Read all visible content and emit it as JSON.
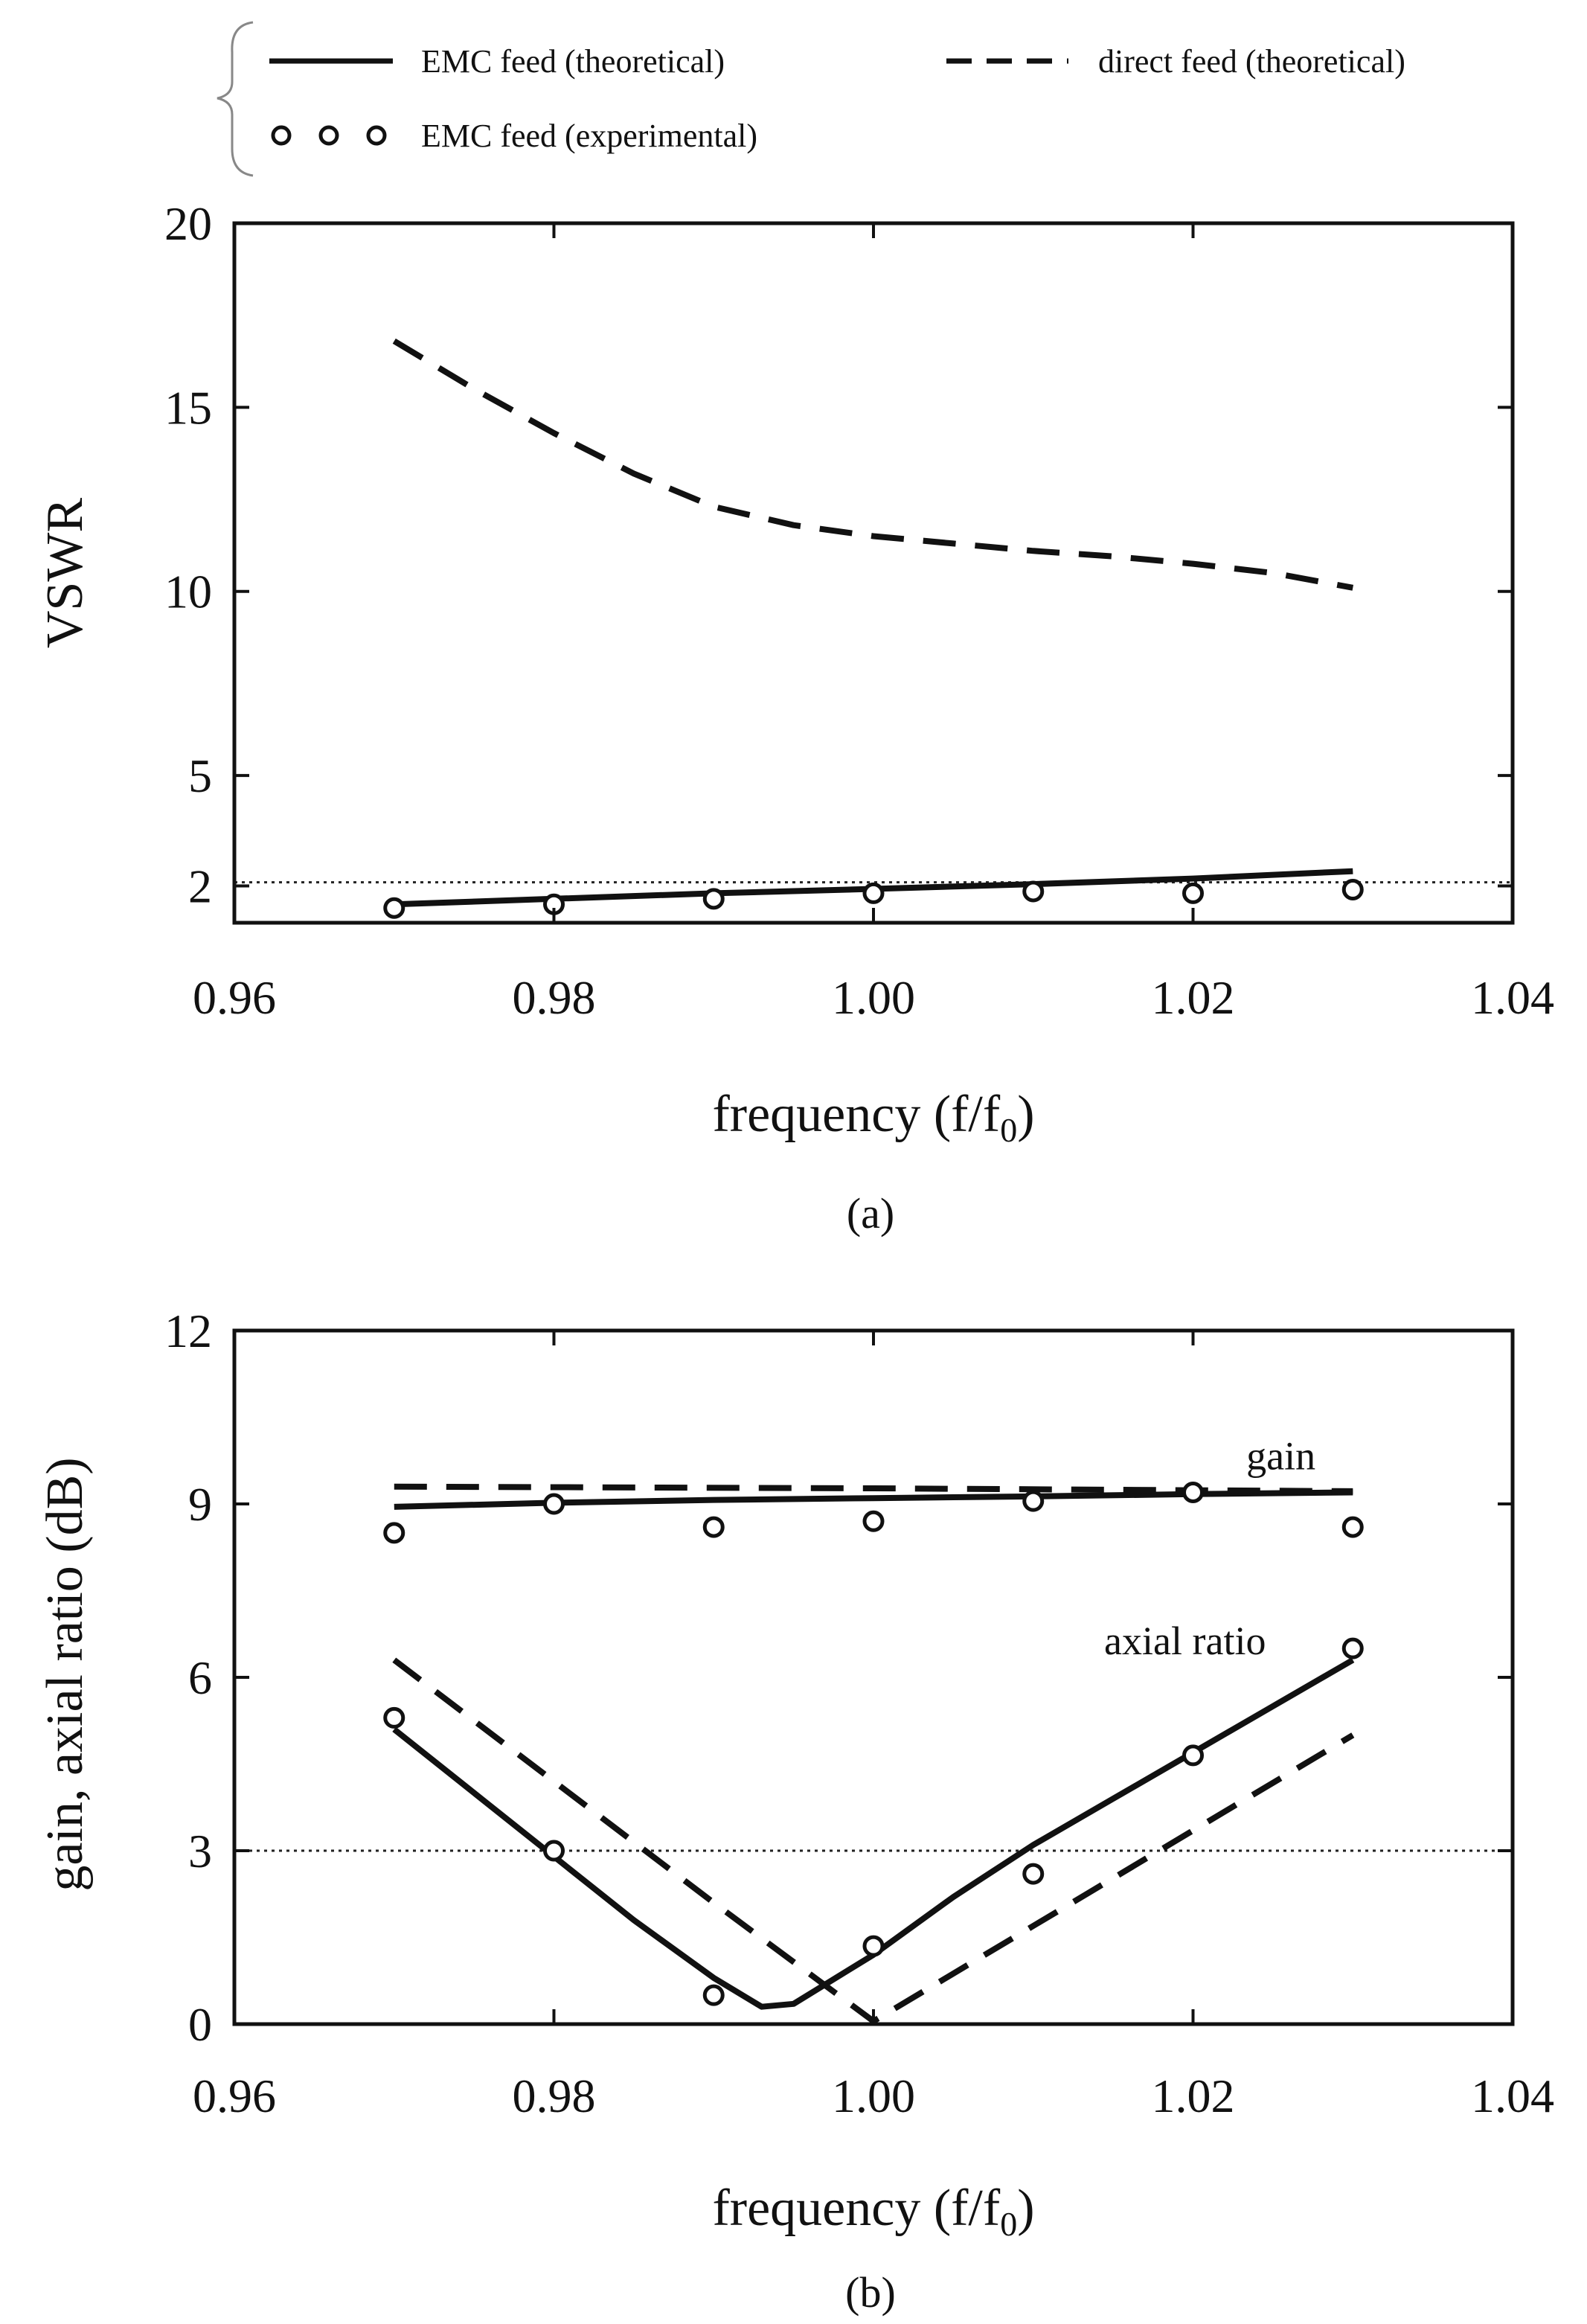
{
  "legend": {
    "items": [
      {
        "label": "EMC feed (theoretical)",
        "style": "solid"
      },
      {
        "label": "direct feed (theoretical)",
        "style": "dashed"
      },
      {
        "label": "EMC feed (experimental)",
        "style": "circles"
      }
    ]
  },
  "chart_data": [
    {
      "type": "line",
      "panel_label": "(a)",
      "title": "",
      "xlabel": "frequency (f/f",
      "xlabel_sub": "0",
      "xlabel_end": ")",
      "ylabel": "VSWR",
      "xlim": [
        0.96,
        1.04
      ],
      "ylim": [
        1,
        20
      ],
      "xticks": [
        0.96,
        0.98,
        1.0,
        1.02,
        1.04
      ],
      "xtick_labels": [
        "0.96",
        "0.98",
        "1.00",
        "1.02",
        "1.04"
      ],
      "yticks": [
        2,
        5,
        10,
        15,
        20
      ],
      "ytick_labels": [
        "2",
        "5",
        "10",
        "15",
        "20"
      ],
      "reference_lines": [
        {
          "y": 2.1,
          "style": "dotted"
        }
      ],
      "series": [
        {
          "name": "EMC feed (theoretical)",
          "style": "solid",
          "x": [
            0.97,
            0.98,
            0.99,
            1.0,
            1.01,
            1.02,
            1.03
          ],
          "y": [
            1.5,
            1.65,
            1.8,
            1.92,
            2.05,
            2.2,
            2.4
          ]
        },
        {
          "name": "direct feed (theoretical)",
          "style": "dashed",
          "x": [
            0.97,
            0.975,
            0.98,
            0.985,
            0.99,
            0.995,
            1.0,
            1.005,
            1.01,
            1.015,
            1.02,
            1.025,
            1.03
          ],
          "y": [
            16.8,
            15.5,
            14.3,
            13.2,
            12.3,
            11.8,
            11.5,
            11.3,
            11.1,
            10.95,
            10.75,
            10.5,
            10.1
          ]
        },
        {
          "name": "EMC feed (experimental)",
          "style": "circles",
          "x": [
            0.97,
            0.98,
            0.99,
            1.0,
            1.01,
            1.02,
            1.03
          ],
          "y": [
            1.4,
            1.5,
            1.65,
            1.8,
            1.85,
            1.8,
            1.9
          ]
        }
      ]
    },
    {
      "type": "line",
      "panel_label": "(b)",
      "title": "",
      "xlabel": "frequency (f/f",
      "xlabel_sub": "0",
      "xlabel_end": ")",
      "ylabel": "gain, axial ratio  (dB)",
      "xlim": [
        0.96,
        1.04
      ],
      "ylim": [
        0,
        12
      ],
      "xticks": [
        0.96,
        0.98,
        1.0,
        1.02,
        1.04
      ],
      "xtick_labels": [
        "0.96",
        "0.98",
        "1.00",
        "1.02",
        "1.04"
      ],
      "yticks": [
        0,
        3,
        6,
        9,
        12
      ],
      "ytick_labels": [
        "0",
        "3",
        "6",
        "9",
        "12"
      ],
      "reference_lines": [
        {
          "y": 3,
          "style": "dotted"
        }
      ],
      "annotations": [
        {
          "text": "gain",
          "x": 1.0255,
          "y": 9.6
        },
        {
          "text": "axial ratio",
          "x": 1.0195,
          "y": 6.4
        }
      ],
      "series": [
        {
          "name": "gain EMC feed (theoretical)",
          "style": "solid",
          "x": [
            0.97,
            0.98,
            0.99,
            1.0,
            1.01,
            1.02,
            1.03
          ],
          "y": [
            8.95,
            9.02,
            9.07,
            9.1,
            9.13,
            9.17,
            9.2
          ]
        },
        {
          "name": "gain direct feed (theoretical)",
          "style": "dashed",
          "x": [
            0.97,
            1.0,
            1.03
          ],
          "y": [
            9.3,
            9.27,
            9.22
          ]
        },
        {
          "name": "gain EMC feed (experimental)",
          "style": "circles",
          "x": [
            0.97,
            0.98,
            0.99,
            1.0,
            1.01,
            1.02,
            1.03
          ],
          "y": [
            8.5,
            9.0,
            8.6,
            8.7,
            9.05,
            9.2,
            8.6
          ]
        },
        {
          "name": "axial ratio EMC feed (theoretical)",
          "style": "solid",
          "x": [
            0.97,
            0.975,
            0.98,
            0.985,
            0.99,
            0.993,
            0.995,
            1.0,
            1.005,
            1.01,
            1.015,
            1.02,
            1.025,
            1.03
          ],
          "y": [
            5.1,
            4.0,
            2.9,
            1.8,
            0.8,
            0.3,
            0.35,
            1.2,
            2.2,
            3.1,
            3.9,
            4.7,
            5.5,
            6.3
          ]
        },
        {
          "name": "axial ratio direct feed (theoretical)",
          "style": "dashed",
          "x": [
            0.97,
            0.98,
            0.99,
            1.0,
            1.01,
            1.02,
            1.03
          ],
          "y": [
            6.3,
            4.2,
            2.1,
            0.05,
            1.7,
            3.35,
            5.0
          ]
        },
        {
          "name": "axial ratio EMC feed (experimental)",
          "style": "circles",
          "x": [
            0.97,
            0.98,
            0.99,
            1.0,
            1.01,
            1.02,
            1.03
          ],
          "y": [
            5.3,
            3.0,
            0.5,
            1.35,
            2.6,
            4.65,
            6.5
          ]
        }
      ]
    }
  ]
}
